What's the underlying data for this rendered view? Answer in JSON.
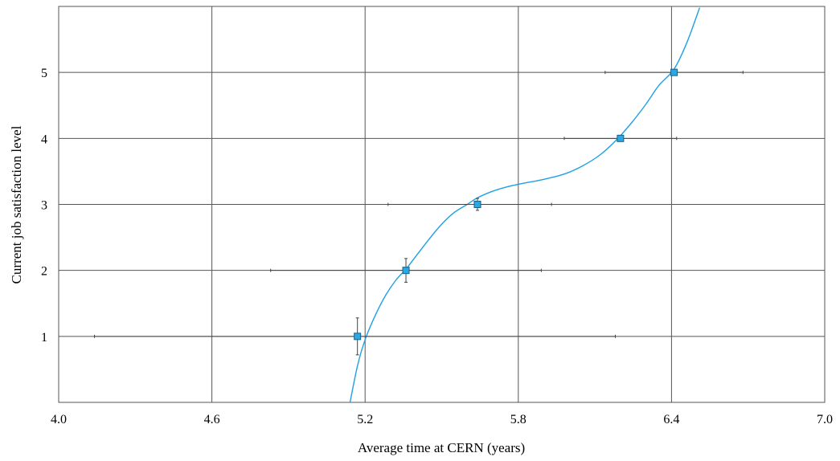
{
  "chart_data": {
    "type": "scatter",
    "title": "",
    "xlabel": "Average time at CERN (years)",
    "ylabel": "Current job satisfaction level",
    "xlim": [
      4.0,
      7.0
    ],
    "ylim": [
      0,
      6
    ],
    "xticks": [
      "4.0",
      "4.6",
      "5.2",
      "5.8",
      "6.4",
      "7.0"
    ],
    "yticks": [
      "1",
      "2",
      "3",
      "4",
      "5"
    ],
    "grid": true,
    "legend": "none",
    "colors": {
      "marker": "#29a9e1",
      "marker_edge": "#1a5f8a",
      "fit_line": "#1ea0e6",
      "error_bar": "#444444",
      "grid": "#555555"
    },
    "series": [
      {
        "points": [
          {
            "x": 5.17,
            "y": 1,
            "xerr_low": 4.14,
            "xerr_high": 6.18,
            "yerr": 0.28
          },
          {
            "x": 5.36,
            "y": 2,
            "xerr_low": 4.83,
            "xerr_high": 5.89,
            "yerr": 0.18
          },
          {
            "x": 5.64,
            "y": 3,
            "xerr_low": 5.29,
            "xerr_high": 5.93,
            "yerr": 0.09
          },
          {
            "x": 6.2,
            "y": 4,
            "xerr_low": 5.98,
            "xerr_high": 6.42,
            "yerr": 0.03
          },
          {
            "x": 6.41,
            "y": 5,
            "xerr_low": 6.14,
            "xerr_high": 6.68,
            "yerr": 0.03
          }
        ],
        "fit_curve": {
          "x": [
            5.14,
            5.17,
            5.2,
            5.24,
            5.28,
            5.32,
            5.36,
            5.4,
            5.45,
            5.5,
            5.55,
            5.6,
            5.64,
            5.7,
            5.76,
            5.82,
            5.9,
            5.98,
            6.05,
            6.12,
            6.18,
            6.24,
            6.3,
            6.35,
            6.41,
            6.46,
            6.51
          ],
          "y": [
            -0.02,
            0.55,
            0.95,
            1.32,
            1.62,
            1.85,
            2.02,
            2.22,
            2.47,
            2.7,
            2.88,
            3.0,
            3.1,
            3.2,
            3.27,
            3.32,
            3.38,
            3.46,
            3.58,
            3.75,
            3.96,
            4.22,
            4.52,
            4.8,
            5.05,
            5.45,
            5.98
          ]
        }
      }
    ]
  }
}
